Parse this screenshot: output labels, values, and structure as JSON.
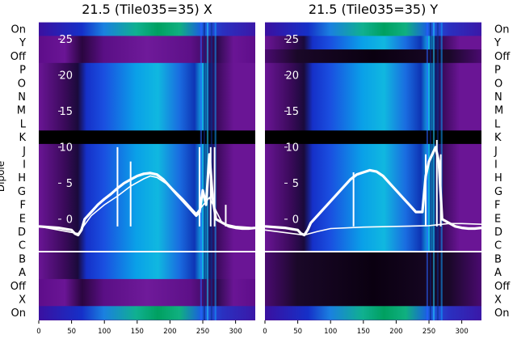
{
  "chart_data": {
    "type": "heatmap",
    "panels": [
      {
        "title": "21.5 (Tile035=35) X",
        "pol": "X"
      },
      {
        "title": "21.5 (Tile035=35) Y",
        "pol": "Y"
      }
    ],
    "row_labels": [
      "On",
      "Y",
      "Off",
      "P",
      "O",
      "N",
      "M",
      "L",
      "K",
      "J",
      "I",
      "H",
      "G",
      "F",
      "E",
      "D",
      "C",
      "B",
      "A",
      "Off",
      "X",
      "On"
    ],
    "ylabel": "Dipole",
    "x_ticks": [
      0,
      50,
      100,
      150,
      200,
      250,
      300
    ],
    "x_range": [
      0,
      330
    ],
    "y_ticks": [
      0,
      5,
      10,
      15,
      20,
      25
    ],
    "y_range": [
      -4.5,
      27.5
    ],
    "colors": {
      "line": "#ffffff",
      "separator": "#ffffff",
      "dark_band": "#000000"
    },
    "series_x": {
      "x": [
        0,
        30,
        50,
        55,
        60,
        65,
        70,
        80,
        90,
        100,
        110,
        120,
        130,
        140,
        150,
        160,
        170,
        180,
        190,
        200,
        210,
        220,
        230,
        240,
        245,
        250,
        255,
        260,
        265,
        270,
        280,
        290,
        300,
        310,
        320,
        330
      ],
      "y": [
        -1,
        -1.2,
        -1.5,
        -2,
        -2.2,
        -1.5,
        0,
        1,
        2,
        2.8,
        3.5,
        4.3,
        5,
        5.5,
        6,
        6.3,
        6.4,
        6.2,
        5.5,
        4.5,
        3.5,
        2.5,
        1.5,
        0.5,
        1,
        4,
        2,
        9,
        3,
        0,
        -0.5,
        -1,
        -1.2,
        -1.3,
        -1.3,
        -1.2
      ],
      "spikes": [
        [
          120,
          10
        ],
        [
          140,
          8
        ],
        [
          245,
          10
        ],
        [
          262,
          10
        ],
        [
          268,
          10
        ],
        [
          285,
          2
        ]
      ]
    },
    "series_x_thin": {
      "x": [
        0,
        60,
        80,
        100,
        120,
        140,
        160,
        170,
        180,
        200,
        220,
        240,
        260,
        280,
        300,
        330
      ],
      "y": [
        -1,
        -2,
        0.5,
        2,
        3.2,
        4.6,
        5.6,
        6,
        5.8,
        4.6,
        2.8,
        0.8,
        3,
        -0.6,
        -1,
        -1.2
      ]
    },
    "series_y": {
      "x": [
        0,
        30,
        50,
        55,
        60,
        65,
        70,
        80,
        90,
        100,
        110,
        120,
        130,
        140,
        150,
        160,
        170,
        180,
        190,
        200,
        210,
        220,
        230,
        240,
        245,
        250,
        255,
        260,
        265,
        270,
        280,
        290,
        300,
        310,
        320,
        330
      ],
      "y": [
        -1,
        -1.2,
        -1.5,
        -2,
        -2.2,
        -1.5,
        -0.5,
        0.5,
        1.5,
        2.5,
        3.5,
        4.5,
        5.5,
        6.2,
        6.5,
        6.8,
        6.6,
        6,
        5,
        4,
        3,
        2,
        1,
        1,
        6,
        8,
        9,
        10,
        8,
        0,
        -0.5,
        -1,
        -1.2,
        -1.3,
        -1.3,
        -1.2
      ],
      "spikes": [
        [
          135,
          6.5
        ],
        [
          245,
          9
        ],
        [
          262,
          11
        ],
        [
          268,
          9
        ]
      ]
    },
    "series_y_thin": {
      "x": [
        0,
        60,
        80,
        100,
        150,
        200,
        250,
        280,
        300,
        330
      ],
      "y": [
        -1.5,
        -2.2,
        -1.7,
        -1.3,
        -1.1,
        -1,
        -0.9,
        -0.6,
        -0.6,
        -0.7
      ]
    }
  }
}
